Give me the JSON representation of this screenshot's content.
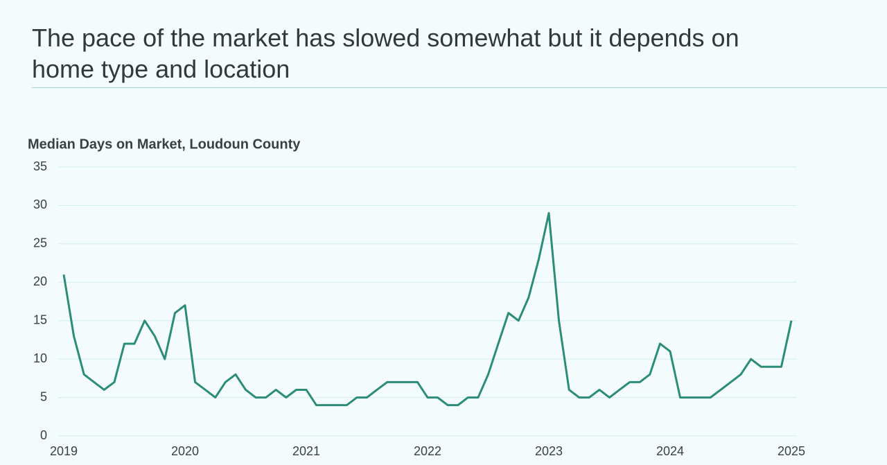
{
  "header": {
    "title": "The pace of the market has slowed somewhat but it depends on home type and location"
  },
  "chart_data": {
    "type": "line",
    "title": "Median Days on Market, Loudoun County",
    "x": [
      2019,
      2019.083,
      2019.167,
      2019.25,
      2019.333,
      2019.417,
      2019.5,
      2019.583,
      2019.667,
      2019.75,
      2019.833,
      2019.917,
      2020,
      2020.083,
      2020.167,
      2020.25,
      2020.333,
      2020.417,
      2020.5,
      2020.583,
      2020.667,
      2020.75,
      2020.833,
      2020.917,
      2021,
      2021.083,
      2021.167,
      2021.25,
      2021.333,
      2021.417,
      2021.5,
      2021.583,
      2021.667,
      2021.75,
      2021.833,
      2021.917,
      2022,
      2022.083,
      2022.167,
      2022.25,
      2022.333,
      2022.417,
      2022.5,
      2022.583,
      2022.667,
      2022.75,
      2022.833,
      2022.917,
      2023,
      2023.083,
      2023.167,
      2023.25,
      2023.333,
      2023.417,
      2023.5,
      2023.583,
      2023.667,
      2023.75,
      2023.833,
      2023.917,
      2024,
      2024.083,
      2024.167,
      2024.25,
      2024.333,
      2024.417,
      2024.5,
      2024.583,
      2024.667,
      2024.75,
      2024.833,
      2024.917,
      2025
    ],
    "series": [
      {
        "name": "Median Days on Market",
        "color": "#2b8c78",
        "values": [
          21,
          13,
          8,
          7,
          6,
          7,
          12,
          12,
          15,
          13,
          10,
          16,
          17,
          7,
          6,
          5,
          7,
          8,
          6,
          5,
          5,
          6,
          5,
          6,
          6,
          4,
          4,
          4,
          4,
          5,
          5,
          6,
          7,
          7,
          7,
          7,
          5,
          5,
          4,
          4,
          5,
          5,
          8,
          12,
          16,
          15,
          18,
          23,
          29,
          15,
          6,
          5,
          5,
          6,
          5,
          6,
          7,
          7,
          8,
          12,
          11,
          5,
          5,
          5,
          5,
          6,
          7,
          8,
          10,
          9,
          9,
          9,
          15
        ]
      }
    ],
    "xlim": [
      2019,
      2025
    ],
    "xticks": [
      2019,
      2020,
      2021,
      2022,
      2023,
      2024,
      2025
    ],
    "ylim": [
      0,
      35
    ],
    "yticks": [
      0,
      5,
      10,
      15,
      20,
      25,
      30,
      35
    ],
    "grid": true
  }
}
